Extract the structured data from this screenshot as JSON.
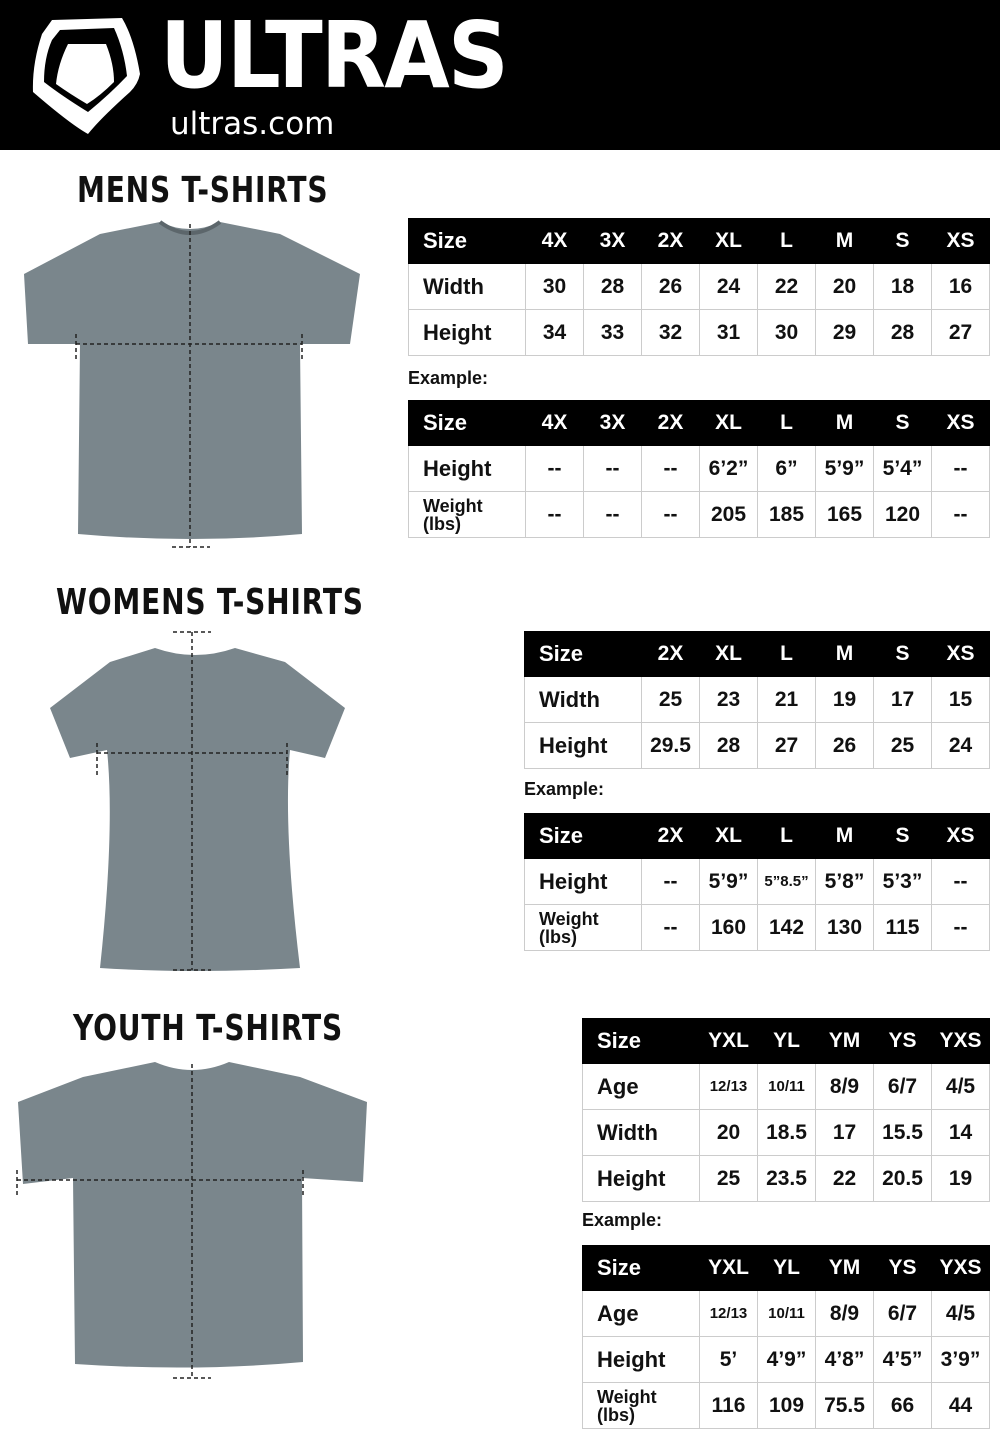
{
  "header": {
    "brand": "ULTRAS",
    "url": "ultras.com",
    "background": "#000000"
  },
  "example_label": "Example:",
  "sections": {
    "mens": {
      "title": "MENS T-SHIRTS",
      "measure": {
        "header": [
          "Size",
          "4X",
          "3X",
          "2X",
          "XL",
          "L",
          "M",
          "S",
          "XS"
        ],
        "rows": [
          [
            "Width",
            "30",
            "28",
            "26",
            "24",
            "22",
            "20",
            "18",
            "16"
          ],
          [
            "Height",
            "34",
            "33",
            "32",
            "31",
            "30",
            "29",
            "28",
            "27"
          ]
        ]
      },
      "example": {
        "header": [
          "Size",
          "4X",
          "3X",
          "2X",
          "XL",
          "L",
          "M",
          "S",
          "XS"
        ],
        "rows": [
          [
            "Height",
            "--",
            "--",
            "--",
            "6’2”",
            "6”",
            "5’9”",
            "5’4”",
            "--"
          ],
          [
            "Weight (lbs)",
            "--",
            "--",
            "--",
            "205",
            "185",
            "165",
            "120",
            "--"
          ]
        ]
      }
    },
    "womens": {
      "title": "WOMENS T-SHIRTS",
      "measure": {
        "header": [
          "Size",
          "2X",
          "XL",
          "L",
          "M",
          "S",
          "XS"
        ],
        "rows": [
          [
            "Width",
            "25",
            "23",
            "21",
            "19",
            "17",
            "15"
          ],
          [
            "Height",
            "29.5",
            "28",
            "27",
            "26",
            "25",
            "24"
          ]
        ]
      },
      "example": {
        "header": [
          "Size",
          "2X",
          "XL",
          "L",
          "M",
          "S",
          "XS"
        ],
        "rows": [
          [
            "Height",
            "--",
            "5’9”",
            "5”8.5”",
            "5’8”",
            "5’3”",
            "--"
          ],
          [
            "Weight (lbs)",
            "--",
            "160",
            "142",
            "130",
            "115",
            "--"
          ]
        ]
      }
    },
    "youth": {
      "title": "YOUTH T-SHIRTS",
      "measure": {
        "header": [
          "Size",
          "YXL",
          "YL",
          "YM",
          "YS",
          "YXS"
        ],
        "rows": [
          [
            "Age",
            "12/13",
            "10/11",
            "8/9",
            "6/7",
            "4/5"
          ],
          [
            "Width",
            "20",
            "18.5",
            "17",
            "15.5",
            "14"
          ],
          [
            "Height",
            "25",
            "23.5",
            "22",
            "20.5",
            "19"
          ]
        ]
      },
      "example": {
        "header": [
          "Size",
          "YXL",
          "YL",
          "YM",
          "YS",
          "YXS"
        ],
        "rows": [
          [
            "Age",
            "12/13",
            "10/11",
            "8/9",
            "6/7",
            "4/5"
          ],
          [
            "Height",
            "5’",
            "4’9”",
            "4’8”",
            "4’5”",
            "3’9”"
          ],
          [
            "Weight (lbs)",
            "116",
            "109",
            "75.5",
            "66",
            "44"
          ]
        ]
      }
    }
  }
}
